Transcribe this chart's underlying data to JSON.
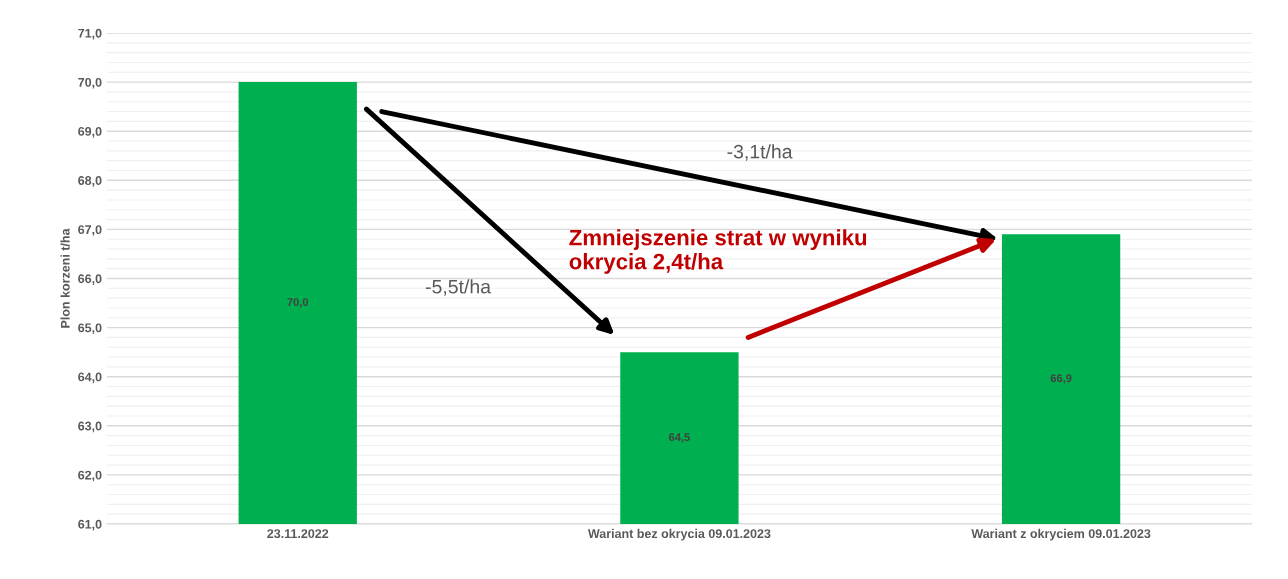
{
  "chart_data": {
    "type": "bar",
    "ylabel": "Plon korzeni t/ha",
    "categories": [
      "23.11.2022",
      "Wariant bez okrycia 09.01.2023",
      "Wariant z okryciem 09.01.2023"
    ],
    "values": [
      70.0,
      64.5,
      66.9
    ],
    "color": "#00b050",
    "value_labels": [
      "70,0",
      "64,5",
      "66,9"
    ],
    "ylim": [
      61,
      71
    ],
    "yticks": [
      {
        "value": 61,
        "label": "61,0"
      },
      {
        "value": 62,
        "label": "62,0"
      },
      {
        "value": 63,
        "label": "63,0"
      },
      {
        "value": 64,
        "label": "64,0"
      },
      {
        "value": 65,
        "label": "65,0"
      },
      {
        "value": 66,
        "label": "66,0"
      },
      {
        "value": 67,
        "label": "67,0"
      },
      {
        "value": 68,
        "label": "68,0"
      },
      {
        "value": 69,
        "label": "69,0"
      },
      {
        "value": 70,
        "label": "70,0"
      },
      {
        "value": 71,
        "label": "71,0"
      }
    ],
    "grid": "y",
    "legend": false,
    "annotations": [
      "-3,1t/ha",
      "-5,5t/ha",
      "Zmniejszenie strat w wyniku\nokrycia 2,4t/ha"
    ]
  }
}
